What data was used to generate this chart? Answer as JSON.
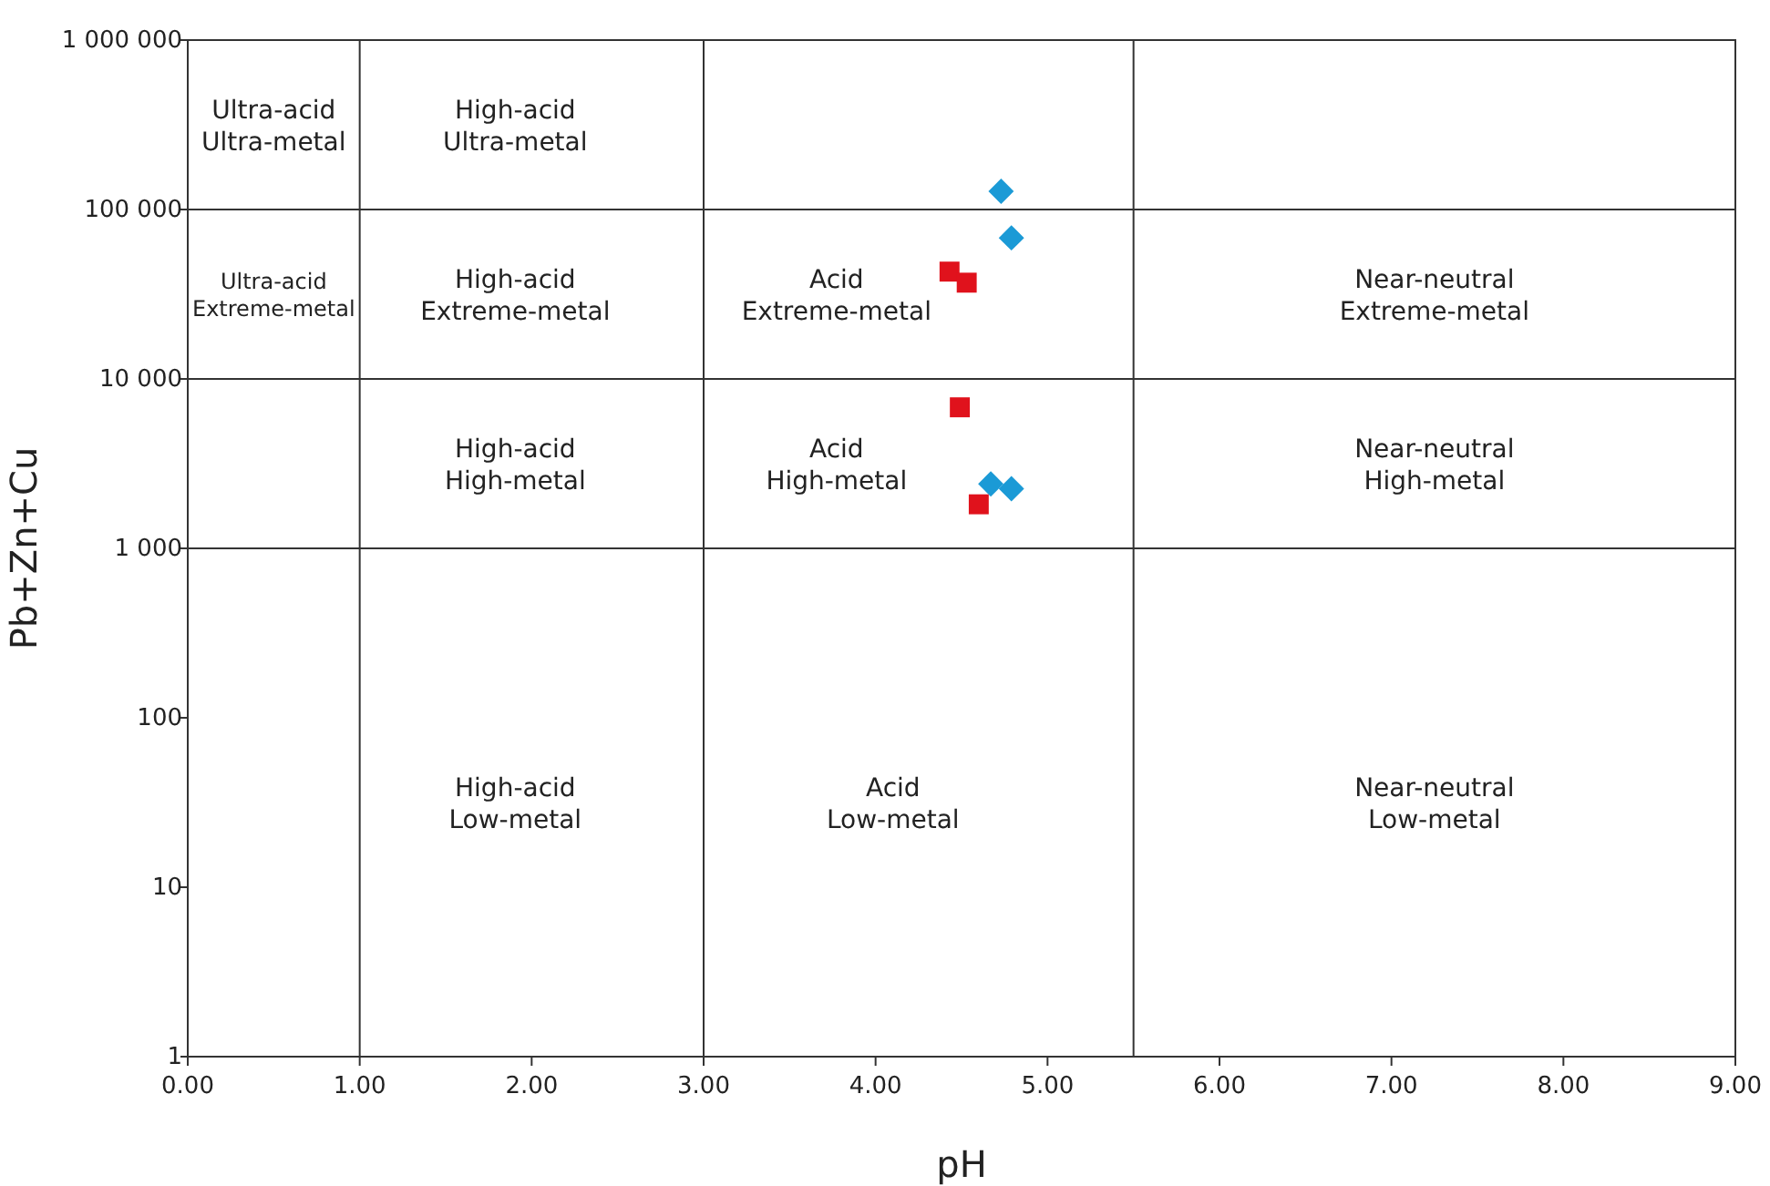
{
  "chart_data": {
    "type": "scatter",
    "xlabel": "pH",
    "ylabel": "Pb+Zn+Cu",
    "log": "y",
    "grid": false,
    "xlim": [
      0,
      9
    ],
    "ylim": [
      1,
      1000000
    ],
    "xticks": [
      {
        "value": 0,
        "label": "0.00"
      },
      {
        "value": 1,
        "label": "1.00"
      },
      {
        "value": 2,
        "label": "2.00"
      },
      {
        "value": 3,
        "label": "3.00"
      },
      {
        "value": 4,
        "label": "4.00"
      },
      {
        "value": 5,
        "label": "5.00"
      },
      {
        "value": 6,
        "label": "6.00"
      },
      {
        "value": 7,
        "label": "7.00"
      },
      {
        "value": 8,
        "label": "8.00"
      },
      {
        "value": 9,
        "label": "9.00"
      }
    ],
    "yticks": [
      1,
      10,
      100,
      {
        "value": 1000,
        "label": "1 000"
      },
      {
        "value": 10000,
        "label": "10 000"
      },
      {
        "value": 100000,
        "label": "100 000"
      },
      {
        "value": 1000000,
        "label": "1 000 000"
      }
    ],
    "series": [
      {
        "color": "#1b9ad6",
        "marker": "diamond",
        "x": [
          4.73,
          4.79,
          4.67,
          4.79
        ],
        "values": [
          128000,
          68000,
          2400,
          2250
        ]
      },
      {
        "color": "#e0121c",
        "marker": "square",
        "x": [
          4.43,
          4.53,
          4.49,
          4.6
        ],
        "values": [
          43000,
          37000,
          6800,
          1820
        ]
      }
    ],
    "ref_lines": [
      {
        "axis": "x",
        "value": 1,
        "color": "#333333"
      },
      {
        "axis": "x",
        "value": 3,
        "color": "#333333"
      },
      {
        "axis": "x",
        "value": 5.5,
        "color": "#333333"
      },
      {
        "axis": "y",
        "value": 1000,
        "color": "#333333"
      },
      {
        "axis": "y",
        "value": 10000,
        "color": "#333333"
      },
      {
        "axis": "y",
        "value": 100000,
        "color": "#333333"
      }
    ],
    "annotations": [
      "Ultra-acid\nUltra-metal",
      "High-acid\nUltra-metal",
      "Ultra-acid\nExtreme-metal",
      "High-acid\nExtreme-metal",
      "Acid\nExtreme-metal",
      "Near-neutral\nExtreme-metal",
      "High-acid\nHigh-metal",
      "Acid\nHigh-metal",
      "Near-neutral\nHigh-metal",
      "High-acid\nLow-metal",
      "Acid\nLow-metal",
      "Near-neutral\nLow-metal"
    ]
  }
}
